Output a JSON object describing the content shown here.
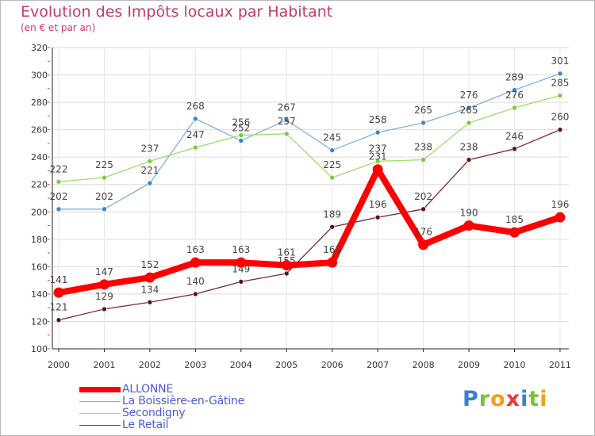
{
  "chart_data": {
    "type": "line",
    "title": "Evolution des Impôts locaux par Habitant",
    "subtitle": "(en € et par an)",
    "xlabel": "",
    "ylabel": "",
    "ylim": [
      100,
      320
    ],
    "yticks": [
      100,
      120,
      140,
      160,
      180,
      200,
      220,
      240,
      260,
      280,
      300,
      320
    ],
    "grid": true,
    "categories": [
      "2000",
      "2001",
      "2002",
      "2003",
      "2004",
      "2005",
      "2006",
      "2007",
      "2008",
      "2009",
      "2010",
      "2011"
    ],
    "series": [
      {
        "name": "La Boissière-en-Gâtine",
        "color": "#3d85c6",
        "line_color": "#7fb2dd",
        "values": [
          202,
          202,
          221,
          268,
          252,
          267,
          245,
          258,
          265,
          276,
          289,
          301
        ]
      },
      {
        "name": "Secondigny",
        "color": "#7acc3c",
        "line_color": "#9ddc6b",
        "values": [
          222,
          225,
          237,
          247,
          256,
          257,
          225,
          237,
          238,
          265,
          276,
          285
        ]
      },
      {
        "name": "Le Retail",
        "color": "#5a1414",
        "line_color": "#7a2a2a",
        "values": [
          121,
          129,
          134,
          140,
          149,
          155,
          189,
          196,
          202,
          238,
          246,
          260
        ]
      },
      {
        "name": "ALLONNE",
        "color": "#ff0000",
        "line_color": "#ff0000",
        "values": [
          141,
          147,
          152,
          163,
          163,
          161,
          163,
          231,
          176,
          190,
          185,
          196
        ]
      }
    ],
    "legend": {
      "position": "bottom-left",
      "items": [
        "ALLONNE",
        "La Boissière-en-Gâtine",
        "Secondigny",
        "Le Retail"
      ]
    }
  },
  "logo": {
    "letters": [
      "P",
      "r",
      "o",
      "x",
      "i",
      "t",
      "i"
    ],
    "colors": [
      "#3a7fd4",
      "#7cbf3a",
      "#f0a020",
      "#e83a3a",
      "#3a7fd4",
      "#7cbf3a",
      "#f0a020"
    ]
  }
}
